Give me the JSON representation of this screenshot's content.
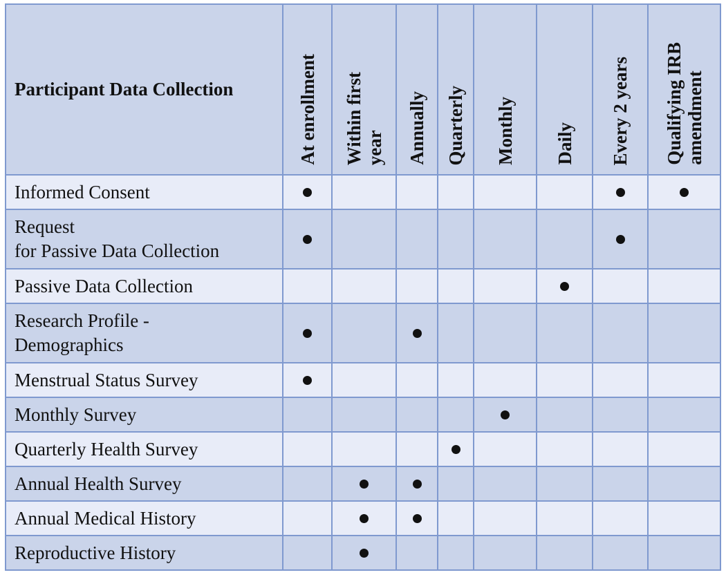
{
  "table": {
    "title": "Participant Data Collection",
    "columns": [
      "At enrollment",
      "Within first\nyear",
      "Annually",
      "Quarterly",
      "Monthly",
      "Daily",
      "Every 2 years",
      "Qualifying IRB\namendment"
    ],
    "rows": [
      {
        "label": "Informed Consent",
        "marks": [
          true,
          false,
          false,
          false,
          false,
          false,
          true,
          true
        ]
      },
      {
        "label": "Request\nfor Passive Data Collection",
        "marks": [
          true,
          false,
          false,
          false,
          false,
          false,
          true,
          false
        ]
      },
      {
        "label": "Passive Data Collection",
        "marks": [
          false,
          false,
          false,
          false,
          false,
          true,
          false,
          false
        ]
      },
      {
        "label": "Research Profile -\nDemographics",
        "marks": [
          true,
          false,
          true,
          false,
          false,
          false,
          false,
          false
        ]
      },
      {
        "label": "Menstrual Status Survey",
        "marks": [
          true,
          false,
          false,
          false,
          false,
          false,
          false,
          false
        ]
      },
      {
        "label": "Monthly Survey",
        "marks": [
          false,
          false,
          false,
          false,
          true,
          false,
          false,
          false
        ]
      },
      {
        "label": "Quarterly Health Survey",
        "marks": [
          false,
          false,
          false,
          true,
          false,
          false,
          false,
          false
        ]
      },
      {
        "label": "Annual Health Survey",
        "marks": [
          false,
          true,
          true,
          false,
          false,
          false,
          false,
          false
        ]
      },
      {
        "label": "Annual Medical History",
        "marks": [
          false,
          true,
          true,
          false,
          false,
          false,
          false,
          false
        ]
      },
      {
        "label": "Reproductive History",
        "marks": [
          false,
          true,
          false,
          false,
          false,
          false,
          false,
          false
        ]
      }
    ]
  },
  "colors": {
    "border": "#7f99cf",
    "header_bg": "#cad4ea",
    "row_light": "#e8ecf8",
    "row_dark": "#cad4ea",
    "dot": "#111111"
  }
}
